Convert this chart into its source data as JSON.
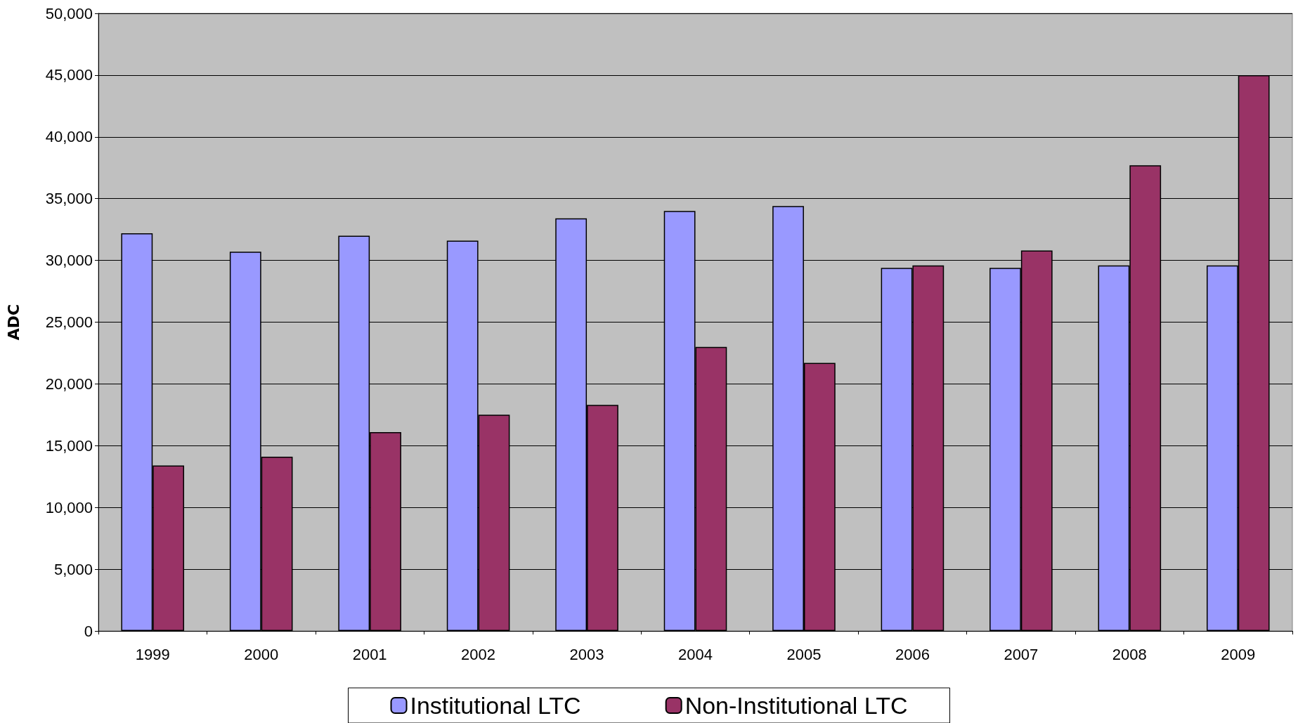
{
  "chart_data": {
    "type": "bar",
    "ylabel": "ADC",
    "categories": [
      "1999",
      "2000",
      "2001",
      "2002",
      "2003",
      "2004",
      "2005",
      "2006",
      "2007",
      "2008",
      "2009"
    ],
    "series": [
      {
        "name": "Institutional LTC",
        "color": "#9999ff",
        "values": [
          32200,
          30700,
          32000,
          31600,
          33400,
          34000,
          34400,
          29400,
          29400,
          29600,
          29600
        ]
      },
      {
        "name": "Non-Institutional LTC",
        "color": "#993366",
        "values": [
          13400,
          14100,
          16100,
          17500,
          18300,
          23000,
          21700,
          29600,
          30800,
          37700,
          45000
        ]
      }
    ],
    "ylim": [
      0,
      50000
    ],
    "yticks": [
      0,
      {
        "value": 5000,
        "label": "5,000"
      },
      {
        "value": 10000,
        "label": "10,000"
      },
      {
        "value": 15000,
        "label": "15,000"
      },
      {
        "value": 20000,
        "label": "20,000"
      },
      {
        "value": 25000,
        "label": "25,000"
      },
      {
        "value": 30000,
        "label": "30,000"
      },
      {
        "value": 35000,
        "label": "35,000"
      },
      {
        "value": 40000,
        "label": "40,000"
      },
      {
        "value": 45000,
        "label": "45,000"
      },
      {
        "value": 50000,
        "label": "50,000"
      }
    ],
    "grid": "y",
    "legend": "bottom"
  }
}
